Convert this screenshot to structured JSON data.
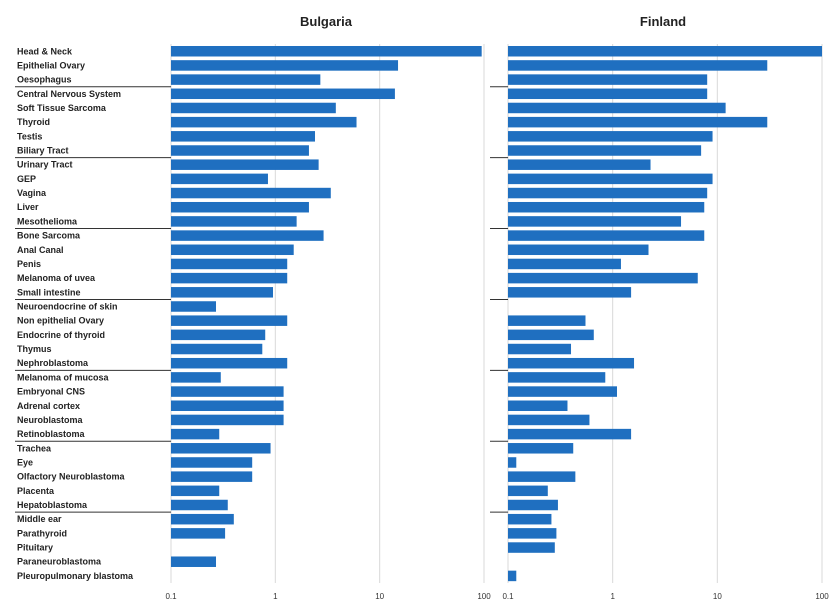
{
  "chart_data": {
    "type": "bar",
    "orientation": "horizontal",
    "xscale": "log",
    "xlim": [
      0.1,
      100
    ],
    "xticks": [
      "0.1",
      "1",
      "10",
      "100"
    ],
    "grid": true,
    "bar_color": "#1f6fc0",
    "categories": [
      "Head & Neck",
      "Epithelial Ovary",
      "Oesophagus",
      "Central Nervous System",
      "Soft Tissue Sarcoma",
      "Thyroid",
      "Testis",
      "Biliary Tract",
      "Urinary Tract",
      "GEP",
      "Vagina",
      "Liver",
      "Mesothelioma",
      "Bone Sarcoma",
      "Anal Canal",
      "Penis",
      "Melanoma of uvea",
      "Small intestine",
      "Neuroendocrine of skin",
      "Non epithelial Ovary",
      "Endocrine of thyroid",
      "Thymus",
      "Nephroblastoma",
      "Melanoma of mucosa",
      "Embryonal CNS",
      "Adrenal cortex",
      "Neuroblastoma",
      "Retinoblastoma",
      "Trachea",
      "Eye",
      "Olfactory Neuroblastoma",
      "Placenta",
      "Hepatoblastoma",
      "Middle ear",
      "Parathyroid",
      "Pituitary",
      "Paraneuroblastoma",
      "Pleuropulmonary blastoma"
    ],
    "group_breaks_after": [
      2,
      7,
      12,
      17,
      22,
      27,
      32
    ],
    "series": [
      {
        "name": "Bulgaria",
        "values": [
          95,
          15,
          2.7,
          14,
          3.8,
          6,
          2.4,
          2.1,
          2.6,
          0.85,
          3.4,
          2.1,
          1.6,
          2.9,
          1.5,
          1.3,
          1.3,
          0.95,
          0.27,
          1.3,
          0.8,
          0.75,
          1.3,
          0.3,
          1.2,
          1.2,
          1.2,
          0.29,
          0.9,
          0.6,
          0.6,
          0.29,
          0.35,
          0.4,
          0.33,
          null,
          0.27,
          null
        ]
      },
      {
        "name": "Finland",
        "values": [
          100,
          30,
          8,
          8,
          12,
          30,
          9,
          7,
          2.3,
          9,
          8,
          7.5,
          4.5,
          7.5,
          2.2,
          1.2,
          6.5,
          1.5,
          null,
          0.55,
          0.66,
          0.4,
          1.6,
          0.85,
          1.1,
          0.37,
          0.6,
          1.5,
          0.42,
          0.12,
          0.44,
          0.24,
          0.3,
          0.26,
          0.29,
          0.28,
          null,
          0.12
        ]
      }
    ]
  }
}
